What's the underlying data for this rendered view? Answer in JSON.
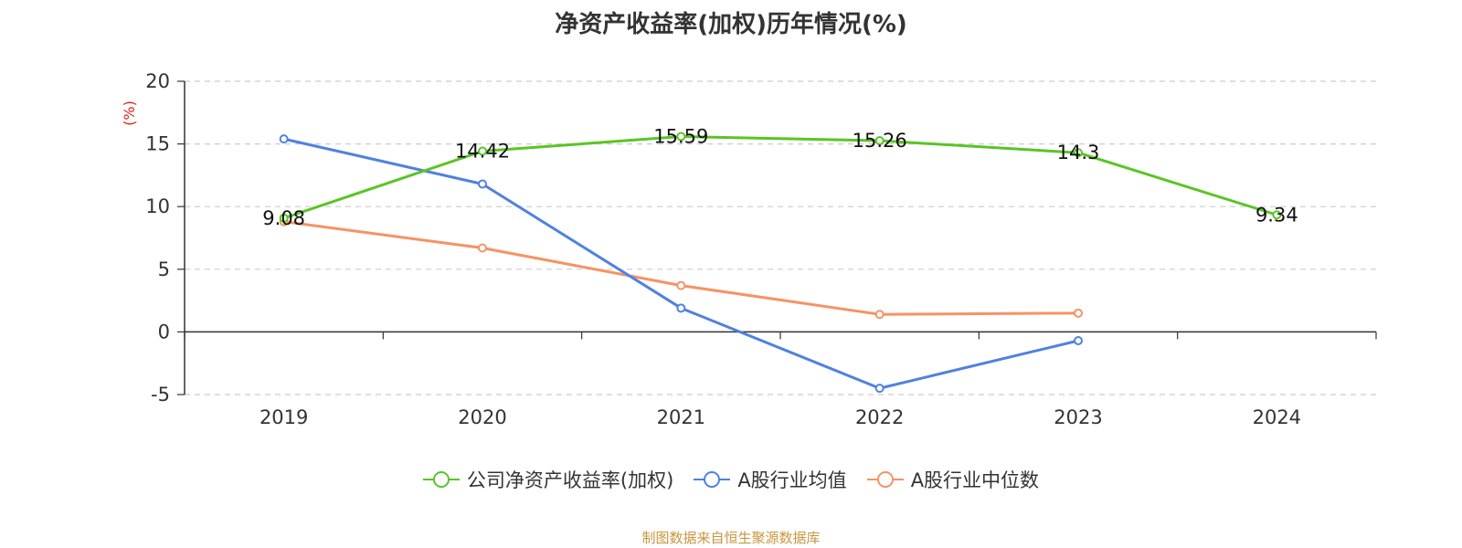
{
  "chart_data": {
    "type": "line",
    "title": "净资产收益率(加权)历年情况(%)",
    "ylabel": "(%)",
    "xlabel": "",
    "categories": [
      "2019",
      "2020",
      "2021",
      "2022",
      "2023",
      "2024"
    ],
    "ylim": [
      -5,
      20
    ],
    "yticks": [
      -5,
      0,
      5,
      10,
      15,
      20
    ],
    "grid": true,
    "legend_position": "bottom",
    "series": [
      {
        "name": "公司净资产收益率(加权)",
        "color": "#5bc425",
        "values": [
          9.08,
          14.42,
          15.59,
          15.26,
          14.3,
          9.34
        ],
        "show_labels": true
      },
      {
        "name": "A股行业均值",
        "color": "#4f81e0",
        "values": [
          15.4,
          11.8,
          1.9,
          -4.5,
          -0.7,
          null
        ],
        "show_labels": false
      },
      {
        "name": "A股行业中位数",
        "color": "#f79264",
        "values": [
          8.8,
          6.7,
          3.7,
          1.4,
          1.5,
          null
        ],
        "show_labels": false
      }
    ]
  },
  "legend": {
    "series_names": [
      "公司净资产收益率(加权)",
      "A股行业均值",
      "A股行业中位数"
    ]
  },
  "source_text": "制图数据来自恒生聚源数据库"
}
